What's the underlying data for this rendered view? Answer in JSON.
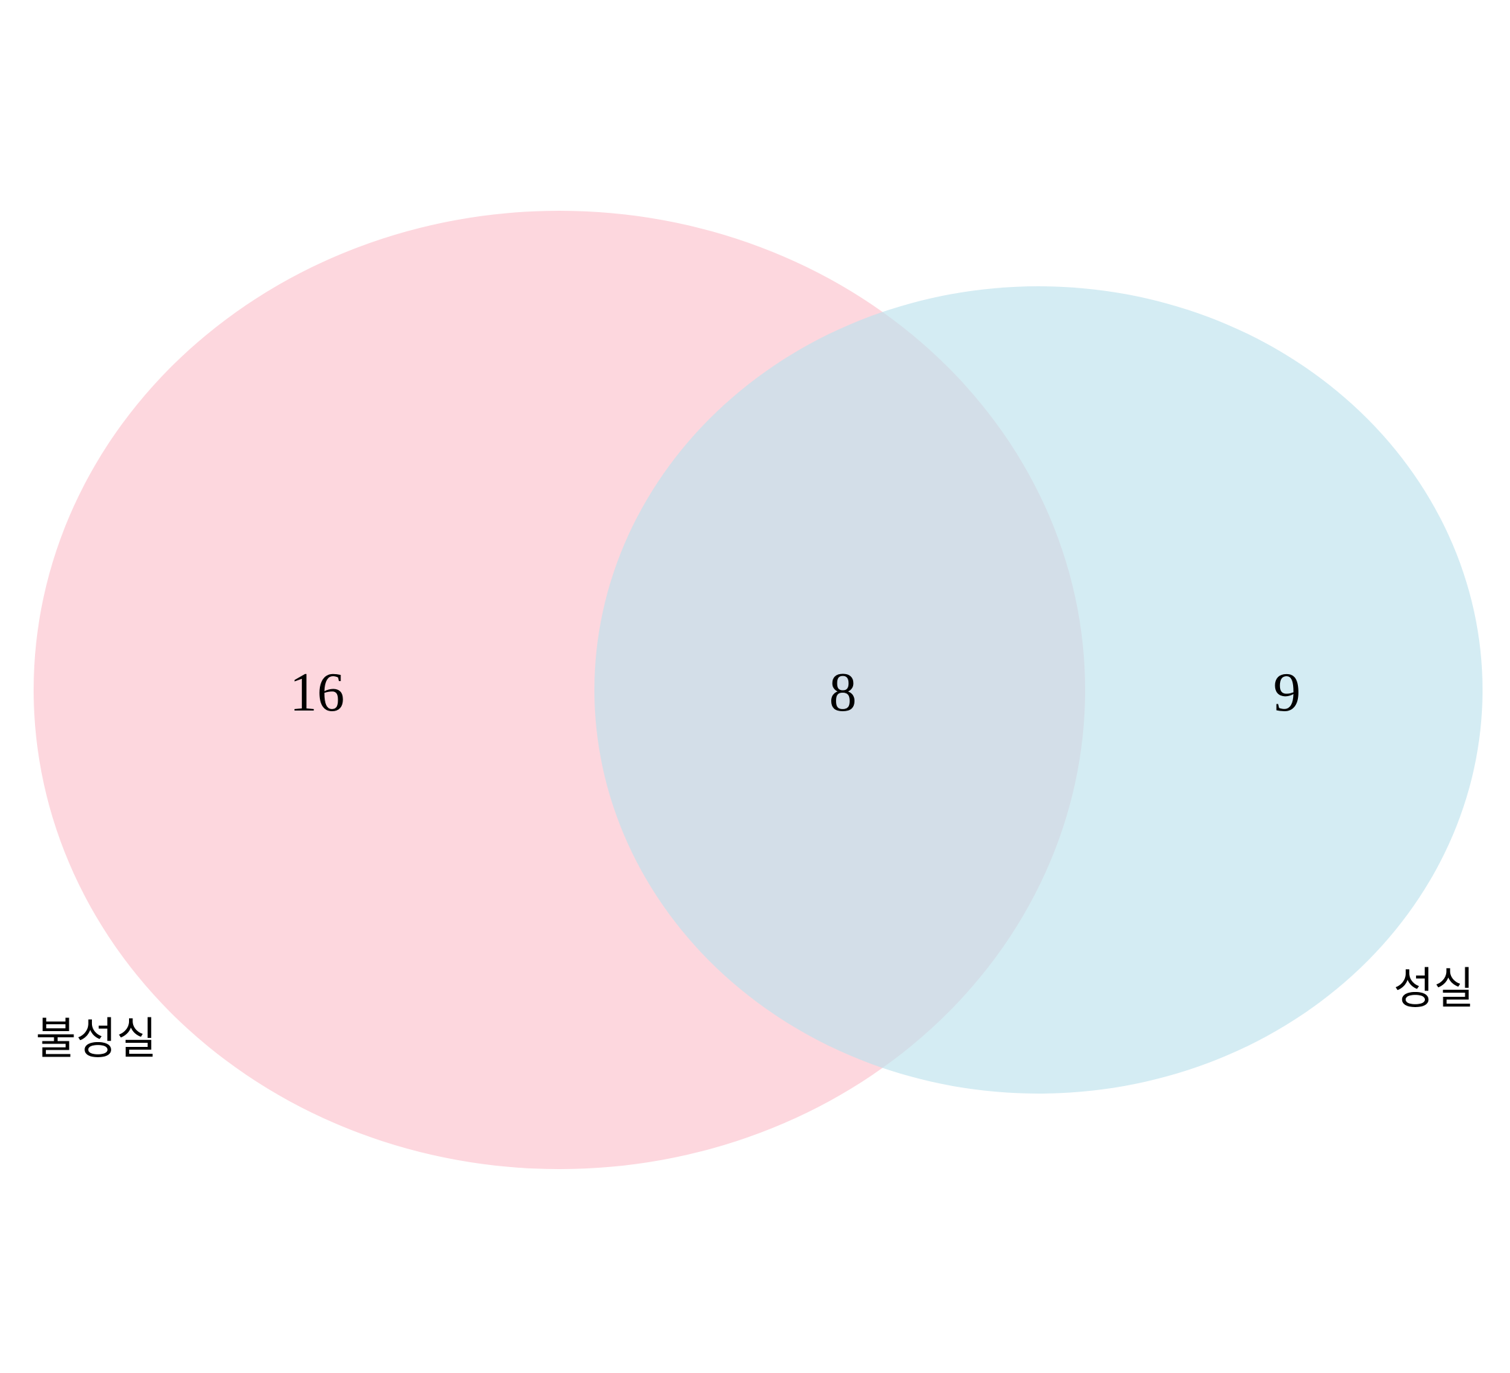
{
  "diagram": {
    "type": "venn",
    "sets": [
      {
        "label": "불성실",
        "color": "#fcc6d0"
      },
      {
        "label": "성실",
        "color": "#bde2ec"
      }
    ],
    "regions": {
      "left_only": "16",
      "intersection": "8",
      "right_only": "9"
    }
  }
}
